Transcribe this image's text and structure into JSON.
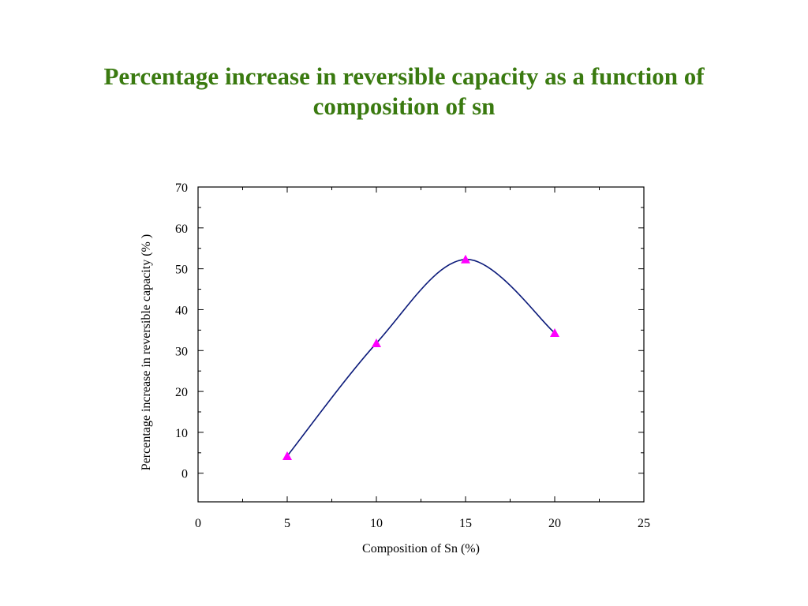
{
  "slide": {
    "title_line1": "Percentage increase in reversible capacity as a function of",
    "title_line2": "composition of sn",
    "title_color": "#3a7a10"
  },
  "chart_data": {
    "type": "line",
    "title": "",
    "xlabel": "Composition of Sn (%)",
    "ylabel": "Percentage increase in reversible capacity (% )",
    "xlim": [
      0,
      25
    ],
    "ylim": [
      -7,
      70
    ],
    "x_ticks": [
      0,
      5,
      10,
      15,
      20,
      25
    ],
    "y_ticks": [
      0,
      10,
      20,
      30,
      40,
      50,
      60,
      70
    ],
    "grid": false,
    "series": [
      {
        "x": [
          5,
          10,
          15,
          20
        ],
        "y": [
          4.2,
          31.8,
          52.3,
          34.3
        ],
        "line_color": "#0b1a7a",
        "marker": "triangle",
        "marker_color": "#ff00ff"
      }
    ]
  }
}
